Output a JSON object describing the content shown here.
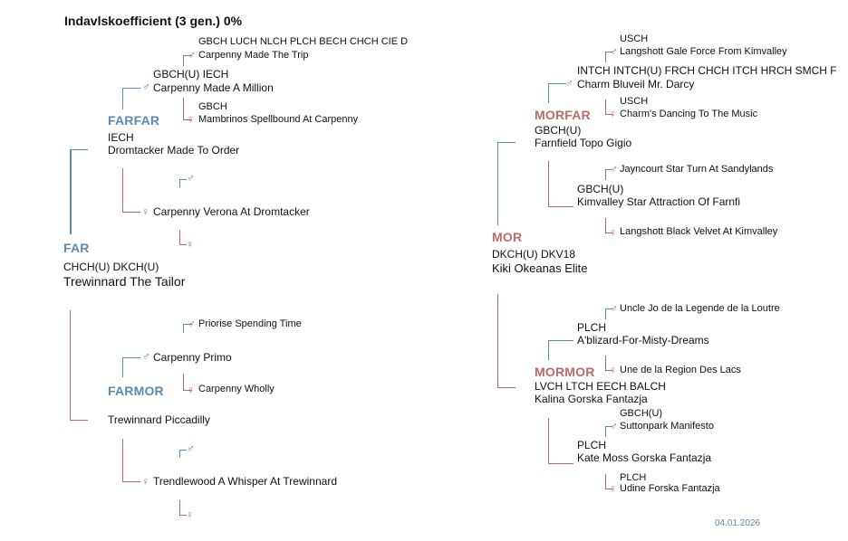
{
  "title": "Indavlskoefficient (3 gen.) 0%",
  "date": "04.01.2026",
  "symbols": {
    "male": "♂",
    "female": "♀"
  },
  "colors": {
    "male": "#5b8bb0",
    "female": "#b86a6a"
  },
  "far": {
    "role": "FAR",
    "titles": "CHCH(U) DKCH(U)",
    "name": "Trewinnard The Tailor",
    "farfar": {
      "role": "FARFAR",
      "titles": "IECH",
      "name": "Dromtacker Made To Order",
      "sire": {
        "titles": "GBCH(U) IECH",
        "name": "Carpenny Made A Million",
        "sire": {
          "titles": "GBCH LUCH NLCH PLCH BECH CHCH CIE D",
          "name": "Carpenny Made The Trip"
        },
        "dam": {
          "titles": "GBCH",
          "name": "Mambrinos Spellbound At Carpenny"
        }
      },
      "dam": {
        "titles": "",
        "name": "Carpenny Verona At Dromtacker",
        "sire": {
          "titles": "",
          "name": ""
        },
        "dam": {
          "titles": "",
          "name": ""
        }
      }
    },
    "farmor": {
      "role": "FARMOR",
      "titles": "",
      "name": "Trewinnard Piccadilly",
      "sire": {
        "titles": "",
        "name": "Carpenny Primo",
        "sire": {
          "titles": "",
          "name": "Priorise Spending Time"
        },
        "dam": {
          "titles": "",
          "name": "Carpenny Wholly"
        }
      },
      "dam": {
        "titles": "",
        "name": "Trendlewood A Whisper At Trewinnard",
        "sire": {
          "titles": "",
          "name": ""
        },
        "dam": {
          "titles": "",
          "name": ""
        }
      }
    }
  },
  "mor": {
    "role": "MOR",
    "titles": "DKCH(U) DKV18",
    "name": "Kiki Okeanas Elite",
    "morfar": {
      "role": "MORFAR",
      "titles": "GBCH(U)",
      "name": "Farnfield Topo Gigio",
      "sire": {
        "titles": "INTCH INTCH(U) FRCH CHCH ITCH HRCH SMCH F",
        "name": "Charm Bluveil Mr. Darcy",
        "sire": {
          "titles": "USCH",
          "name": "Langshott Gale Force From Kimvalley"
        },
        "dam": {
          "titles": "USCH",
          "name": "Charm's Dancing To The Music"
        }
      },
      "dam": {
        "titles": "GBCH(U)",
        "name": "Kimvalley Star Attraction Of Farnfi",
        "sire": {
          "titles": "",
          "name": "Jayncourt Star Turn At Sandylands"
        },
        "dam": {
          "titles": "",
          "name": "Langshott Black Velvet At Kimvalley"
        }
      }
    },
    "mormor": {
      "role": "MORMOR",
      "titles": "LVCH LTCH EECH BALCH",
      "name": "Kalina Gorska Fantazja",
      "sire": {
        "titles": "PLCH",
        "name": "A'blizard-For-Misty-Dreams",
        "sire": {
          "titles": "",
          "name": "Uncle Jo de la Legende de la Loutre"
        },
        "dam": {
          "titles": "",
          "name": "Une de la Region Des Lacs"
        }
      },
      "dam": {
        "titles": "PLCH",
        "name": "Kate Moss Gorska Fantazja",
        "sire": {
          "titles": "GBCH(U)",
          "name": "Suttonpark Manifesto"
        },
        "dam": {
          "titles": "PLCH",
          "name": "Udine Forska Fantazja"
        }
      }
    }
  }
}
